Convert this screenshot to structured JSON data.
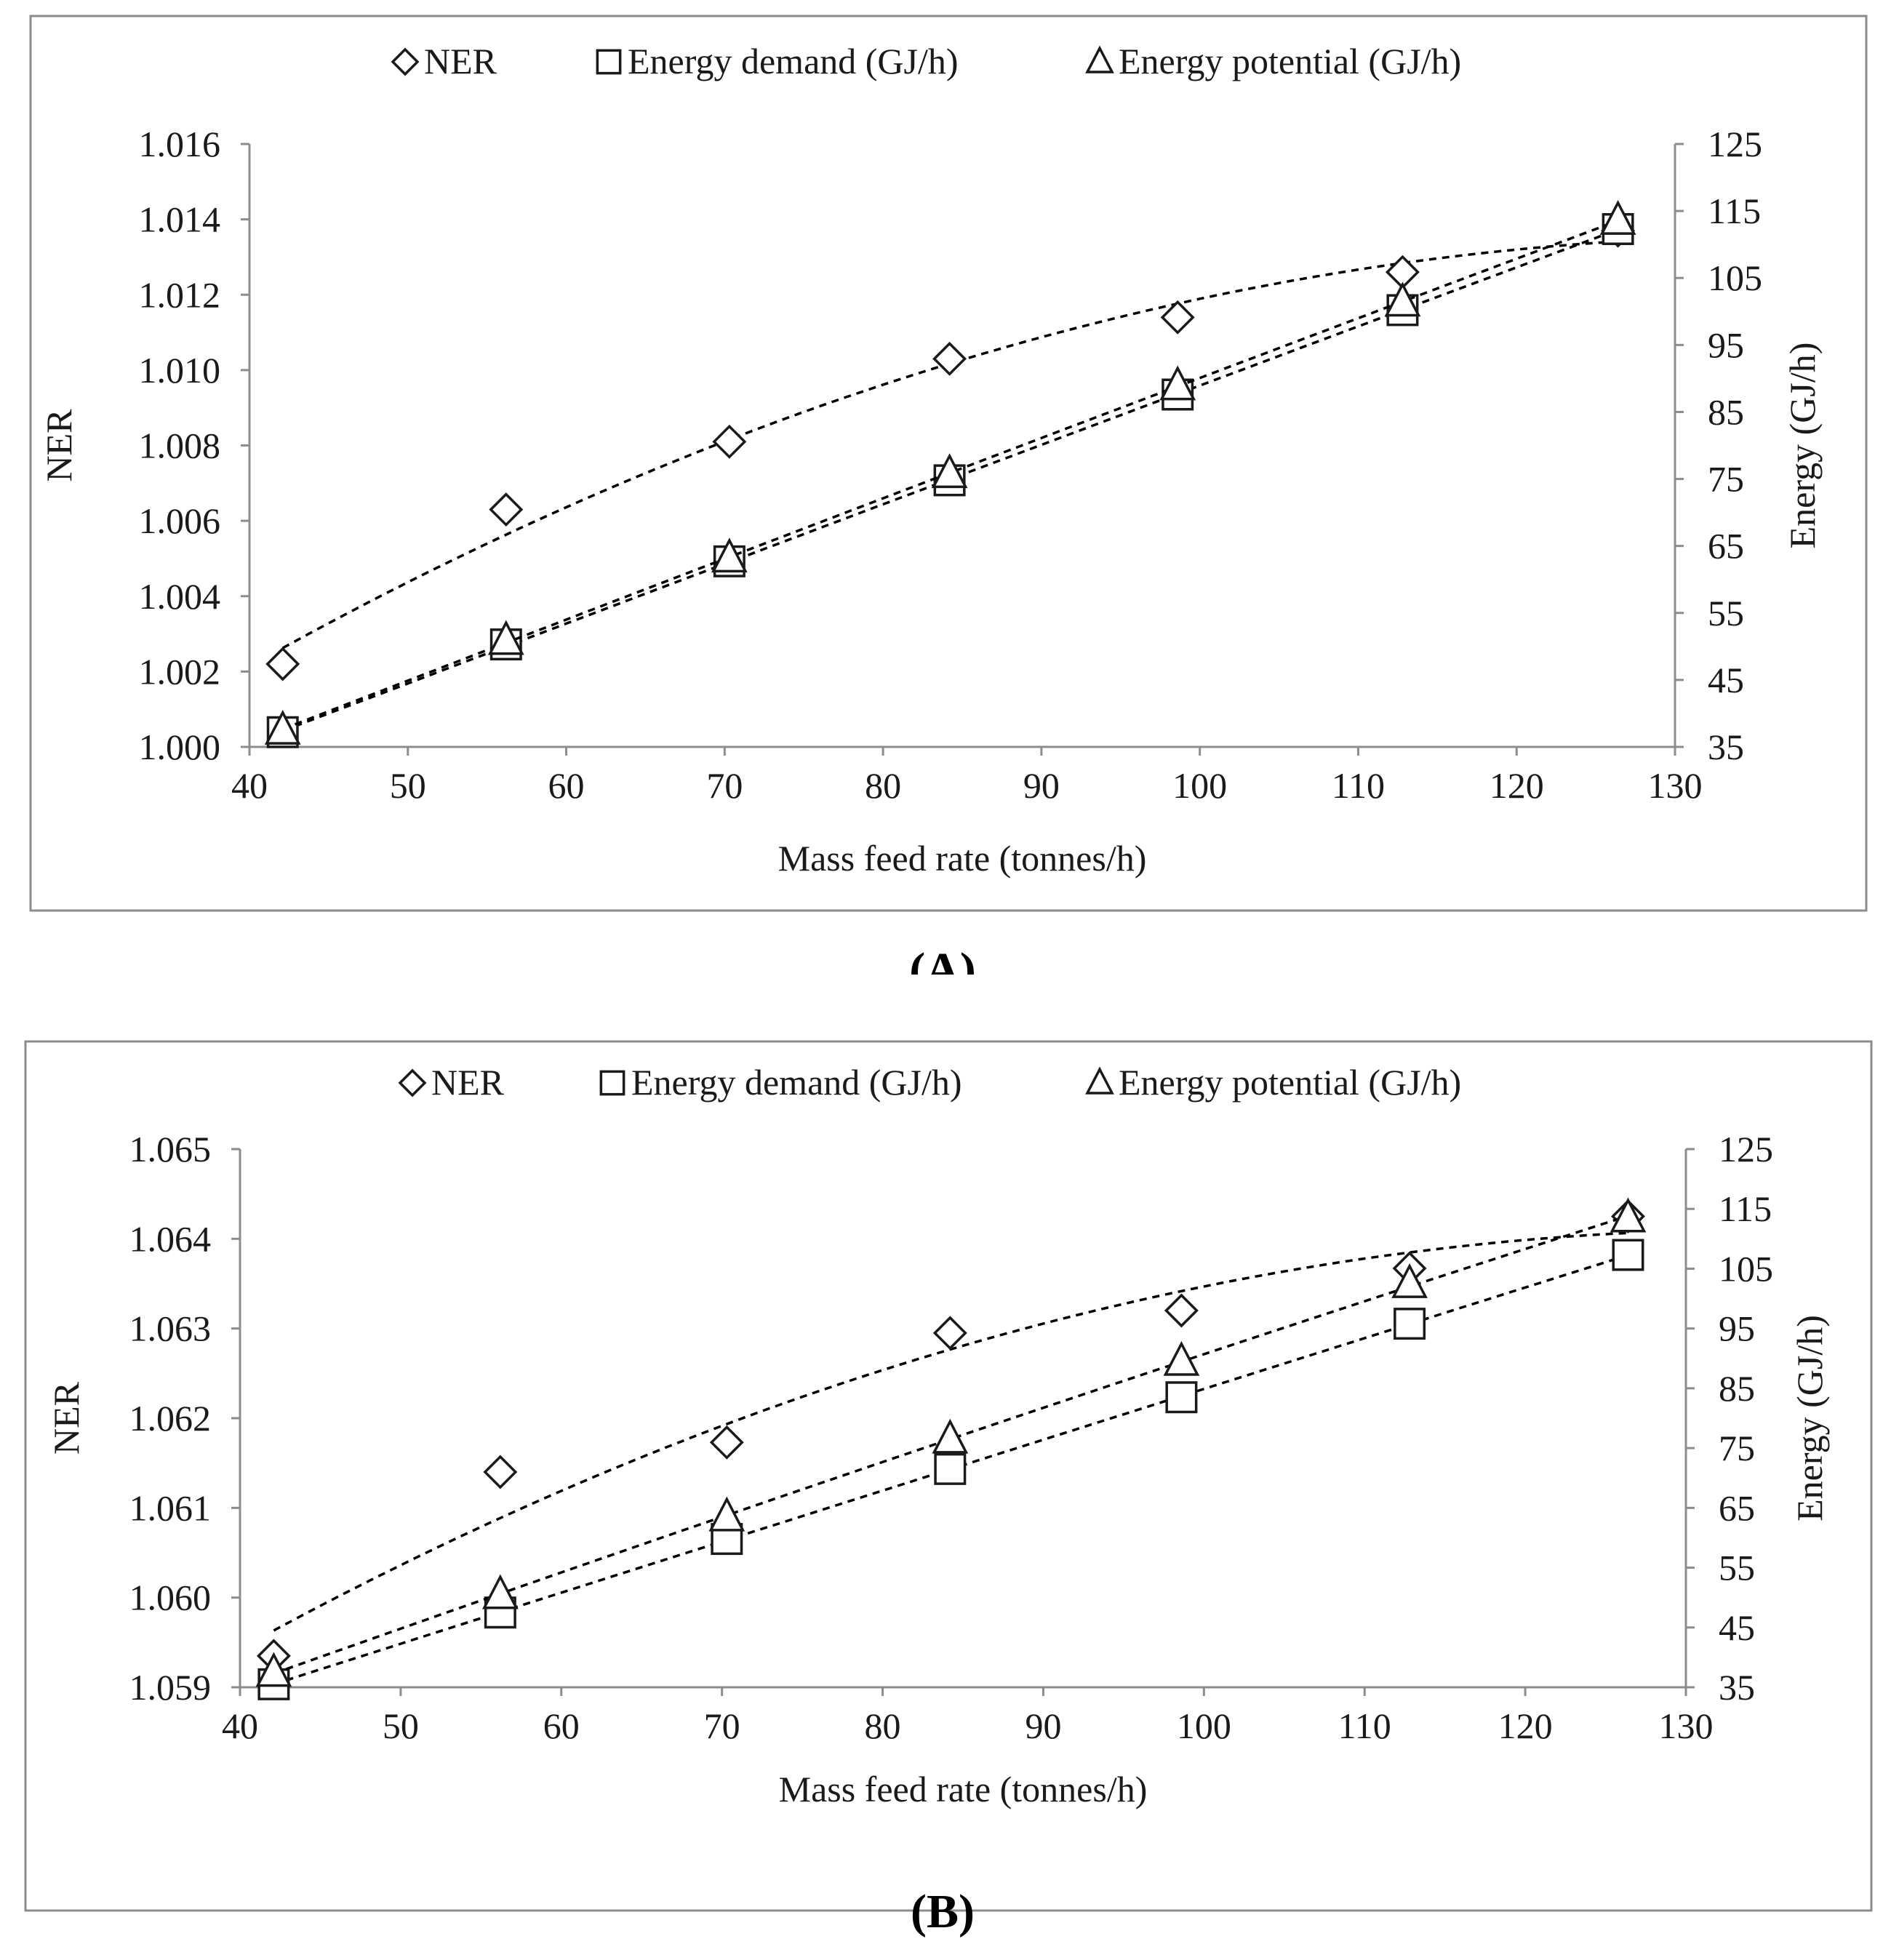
{
  "chart_data": [
    {
      "panel_label": "(A)",
      "type": "scatter",
      "trendlines": "dashed",
      "x": [
        42.1,
        56.2,
        70.3,
        84.2,
        98.6,
        112.8,
        126.4
      ],
      "xlabel": "Mass feed rate  (tonnes/h)",
      "xlim": [
        40,
        130
      ],
      "x_ticks": [
        "40",
        "50",
        "60",
        "70",
        "80",
        "90",
        "100",
        "110",
        "120",
        "130"
      ],
      "ylabel_left": "NER",
      "ylim_left": [
        1.0,
        1.016
      ],
      "y_ticks_left": [
        "1.000",
        "1.002",
        "1.004",
        "1.006",
        "1.008",
        "1.010",
        "1.012",
        "1.014",
        "1.016"
      ],
      "ylabel_right": "Energy (GJ/h)",
      "ylim_right": [
        35,
        125
      ],
      "y_ticks_right": [
        "35",
        "45",
        "55",
        "65",
        "75",
        "85",
        "95",
        "105",
        "115",
        "125"
      ],
      "legend": [
        "NER",
        "Energy demand (GJ/h)",
        "Energy potential (GJ/h)"
      ],
      "legend_position": "top",
      "series": [
        {
          "name": "NER",
          "marker": "diamond",
          "axis": "left",
          "values": [
            1.0022,
            1.0063,
            1.0081,
            1.0103,
            1.0114,
            1.0126,
            1.0137
          ]
        },
        {
          "name": "Energy demand (GJ/h)",
          "marker": "square",
          "axis": "right",
          "values": [
            37.2,
            50.3,
            62.7,
            74.8,
            87.6,
            100.2,
            112.3
          ]
        },
        {
          "name": "Energy potential (GJ/h)",
          "marker": "triangle",
          "axis": "right",
          "values": [
            37.5,
            50.9,
            63.2,
            75.8,
            88.9,
            101.4,
            113.6
          ]
        }
      ]
    },
    {
      "panel_label": "(B)",
      "type": "scatter",
      "trendlines": "dashed",
      "x": [
        42.1,
        56.2,
        70.3,
        84.2,
        98.6,
        112.8,
        126.4
      ],
      "xlabel": "Mass feed rate (tonnes/h)",
      "xlim": [
        40,
        130
      ],
      "x_ticks": [
        "40",
        "50",
        "60",
        "70",
        "80",
        "90",
        "100",
        "110",
        "120",
        "130"
      ],
      "ylabel_left": "NER",
      "ylim_left": [
        1.059,
        1.065
      ],
      "y_ticks_left": [
        "1.059",
        "1.060",
        "1.061",
        "1.062",
        "1.063",
        "1.064",
        "1.065"
      ],
      "ylabel_right": "Energy (GJ/h)",
      "ylim_right": [
        35,
        125
      ],
      "y_ticks_right": [
        "35",
        "45",
        "55",
        "65",
        "75",
        "85",
        "95",
        "105",
        "115",
        "125"
      ],
      "legend": [
        "NER",
        "Energy demand (GJ/h)",
        "Energy potential (GJ/h)"
      ],
      "legend_position": "top",
      "series": [
        {
          "name": "NER",
          "marker": "diamond",
          "axis": "left",
          "values": [
            1.05935,
            1.0614,
            1.06173,
            1.06295,
            1.0632,
            1.06367,
            1.06425
          ]
        },
        {
          "name": "Energy demand (GJ/h)",
          "marker": "square",
          "axis": "right",
          "values": [
            35.5,
            47.5,
            59.8,
            71.5,
            83.5,
            95.8,
            107.3
          ]
        },
        {
          "name": "Energy potential (GJ/h)",
          "marker": "triangle",
          "axis": "right",
          "values": [
            37.5,
            50.5,
            63.5,
            76.5,
            89.5,
            102.5,
            113.5
          ]
        }
      ]
    }
  ]
}
